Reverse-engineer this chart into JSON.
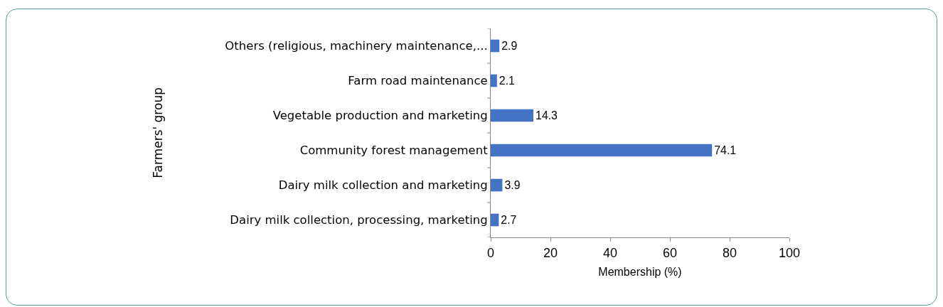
{
  "chart_data": {
    "type": "bar",
    "orientation": "horizontal",
    "xlabel": "Membership (%)",
    "ylabel": "Farmers' group",
    "categories": [
      "Others (religious, machinery maintenance,...",
      "Farm road maintenance",
      "Vegetable production and marketing",
      "Community forest management",
      "Dairy milk collection and marketing",
      "Dairy milk collection, processing, marketing"
    ],
    "values": [
      2.9,
      2.1,
      14.3,
      74.1,
      3.9,
      2.7
    ],
    "color": "#4472c4",
    "xlim": [
      0,
      100
    ],
    "xticks": [
      0,
      20,
      40,
      60,
      80,
      100
    ],
    "grid": false,
    "data_labels": true
  }
}
